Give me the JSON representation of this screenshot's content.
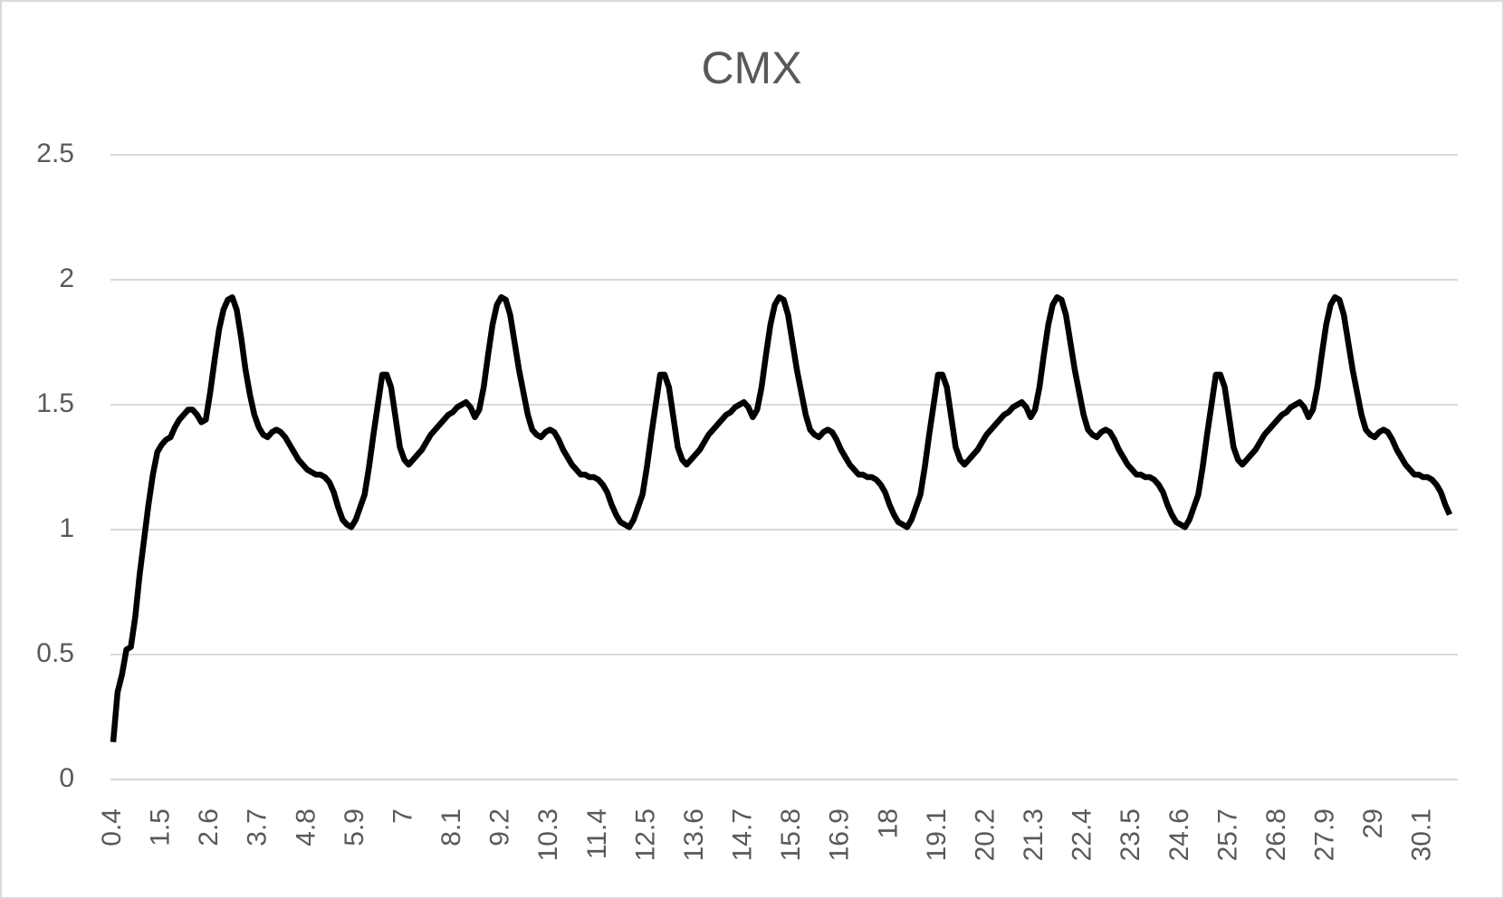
{
  "chart_data": {
    "type": "line",
    "title": "CMX",
    "color": "#000000",
    "grid": true,
    "ylim": [
      0,
      2.5
    ],
    "yticks": [
      0,
      0.5,
      1,
      1.5,
      2,
      2.5
    ],
    "categories": [
      "0.4",
      null,
      null,
      null,
      null,
      null,
      null,
      null,
      null,
      null,
      null,
      "1.5",
      null,
      null,
      null,
      null,
      null,
      null,
      null,
      null,
      null,
      null,
      "2.6",
      null,
      null,
      null,
      null,
      null,
      null,
      null,
      null,
      null,
      null,
      "3.7",
      null,
      null,
      null,
      null,
      null,
      null,
      null,
      null,
      null,
      null,
      "4.8",
      null,
      null,
      null,
      null,
      null,
      null,
      null,
      null,
      null,
      null,
      "5.9",
      null,
      null,
      null,
      null,
      null,
      null,
      null,
      null,
      null,
      null,
      "7",
      null,
      null,
      null,
      null,
      null,
      null,
      null,
      null,
      null,
      null,
      "8.1",
      null,
      null,
      null,
      null,
      null,
      null,
      null,
      null,
      null,
      null,
      "9.2",
      null,
      null,
      null,
      null,
      null,
      null,
      null,
      null,
      null,
      null,
      "10.3",
      null,
      null,
      null,
      null,
      null,
      null,
      null,
      null,
      null,
      null,
      "11.4",
      null,
      null,
      null,
      null,
      null,
      null,
      null,
      null,
      null,
      null,
      "12.5",
      null,
      null,
      null,
      null,
      null,
      null,
      null,
      null,
      null,
      null,
      "13.6",
      null,
      null,
      null,
      null,
      null,
      null,
      null,
      null,
      null,
      null,
      "14.7",
      null,
      null,
      null,
      null,
      null,
      null,
      null,
      null,
      null,
      null,
      "15.8",
      null,
      null,
      null,
      null,
      null,
      null,
      null,
      null,
      null,
      null,
      "16.9",
      null,
      null,
      null,
      null,
      null,
      null,
      null,
      null,
      null,
      null,
      "18",
      null,
      null,
      null,
      null,
      null,
      null,
      null,
      null,
      null,
      null,
      "19.1",
      null,
      null,
      null,
      null,
      null,
      null,
      null,
      null,
      null,
      null,
      "20.2",
      null,
      null,
      null,
      null,
      null,
      null,
      null,
      null,
      null,
      null,
      "21.3",
      null,
      null,
      null,
      null,
      null,
      null,
      null,
      null,
      null,
      null,
      "22.4",
      null,
      null,
      null,
      null,
      null,
      null,
      null,
      null,
      null,
      null,
      "23.5",
      null,
      null,
      null,
      null,
      null,
      null,
      null,
      null,
      null,
      null,
      "24.6",
      null,
      null,
      null,
      null,
      null,
      null,
      null,
      null,
      null,
      null,
      "25.7",
      null,
      null,
      null,
      null,
      null,
      null,
      null,
      null,
      null,
      null,
      "26.8",
      null,
      null,
      null,
      null,
      null,
      null,
      null,
      null,
      null,
      null,
      "27.9",
      null,
      null,
      null,
      null,
      null,
      null,
      null,
      null,
      null,
      null,
      "29",
      null,
      null,
      null,
      null,
      null,
      null,
      null,
      null,
      null,
      null,
      "30.1",
      null,
      null,
      null,
      null,
      null,
      null
    ],
    "values": [
      0.15,
      0.35,
      0.42,
      0.52,
      0.53,
      0.65,
      0.82,
      0.96,
      1.1,
      1.22,
      1.31,
      1.34,
      1.36,
      1.37,
      1.41,
      1.44,
      1.46,
      1.48,
      1.48,
      1.46,
      1.43,
      1.44,
      1.55,
      1.68,
      1.8,
      1.88,
      1.92,
      1.93,
      1.88,
      1.77,
      1.64,
      1.54,
      1.46,
      1.41,
      1.38,
      1.37,
      1.39,
      1.4,
      1.39,
      1.37,
      1.34,
      1.31,
      1.28,
      1.26,
      1.24,
      1.23,
      1.22,
      1.22,
      1.21,
      1.19,
      1.15,
      1.09,
      1.04,
      1.02,
      1.01,
      1.04,
      1.09,
      1.14,
      1.25,
      1.38,
      1.5,
      1.62,
      1.62,
      1.57,
      1.45,
      1.33,
      1.28,
      1.26,
      1.28,
      1.3,
      1.32,
      1.35,
      1.38,
      1.4,
      1.42,
      1.44,
      1.46,
      1.47,
      1.49,
      1.5,
      1.51,
      1.49,
      1.45,
      1.48,
      1.57,
      1.7,
      1.82,
      1.9,
      1.93,
      1.92,
      1.86,
      1.75,
      1.64,
      1.55,
      1.46,
      1.4,
      1.38,
      1.37,
      1.39,
      1.4,
      1.39,
      1.36,
      1.32,
      1.29,
      1.26,
      1.24,
      1.22,
      1.22,
      1.21,
      1.21,
      1.2,
      1.18,
      1.15,
      1.1,
      1.06,
      1.03,
      1.02,
      1.01,
      1.04,
      1.09,
      1.14,
      1.25,
      1.38,
      1.5,
      1.62,
      1.62,
      1.57,
      1.45,
      1.33,
      1.28,
      1.26,
      1.28,
      1.3,
      1.32,
      1.35,
      1.38,
      1.4,
      1.42,
      1.44,
      1.46,
      1.47,
      1.49,
      1.5,
      1.51,
      1.49,
      1.45,
      1.48,
      1.57,
      1.7,
      1.82,
      1.9,
      1.93,
      1.92,
      1.86,
      1.75,
      1.64,
      1.55,
      1.46,
      1.4,
      1.38,
      1.37,
      1.39,
      1.4,
      1.39,
      1.36,
      1.32,
      1.29,
      1.26,
      1.24,
      1.22,
      1.22,
      1.21,
      1.21,
      1.2,
      1.18,
      1.15,
      1.1,
      1.06,
      1.03,
      1.02,
      1.01,
      1.04,
      1.09,
      1.14,
      1.25,
      1.38,
      1.5,
      1.62,
      1.62,
      1.57,
      1.45,
      1.33,
      1.28,
      1.26,
      1.28,
      1.3,
      1.32,
      1.35,
      1.38,
      1.4,
      1.42,
      1.44,
      1.46,
      1.47,
      1.49,
      1.5,
      1.51,
      1.49,
      1.45,
      1.48,
      1.57,
      1.7,
      1.82,
      1.9,
      1.93,
      1.92,
      1.86,
      1.75,
      1.64,
      1.55,
      1.46,
      1.4,
      1.38,
      1.37,
      1.39,
      1.4,
      1.39,
      1.36,
      1.32,
      1.29,
      1.26,
      1.24,
      1.22,
      1.22,
      1.21,
      1.21,
      1.2,
      1.18,
      1.15,
      1.1,
      1.06,
      1.03,
      1.02,
      1.01,
      1.04,
      1.09,
      1.14,
      1.25,
      1.38,
      1.5,
      1.62,
      1.62,
      1.57,
      1.45,
      1.33,
      1.28,
      1.26,
      1.28,
      1.3,
      1.32,
      1.35,
      1.38,
      1.4,
      1.42,
      1.44,
      1.46,
      1.47,
      1.49,
      1.5,
      1.51,
      1.49,
      1.45,
      1.48,
      1.57,
      1.7,
      1.82,
      1.9,
      1.93,
      1.92,
      1.86,
      1.75,
      1.64,
      1.55,
      1.46,
      1.4,
      1.38,
      1.37,
      1.39,
      1.4,
      1.39,
      1.36,
      1.32,
      1.29,
      1.26,
      1.24,
      1.22,
      1.22,
      1.21,
      1.21,
      1.2,
      1.18,
      1.15,
      1.1,
      1.06
    ]
  }
}
